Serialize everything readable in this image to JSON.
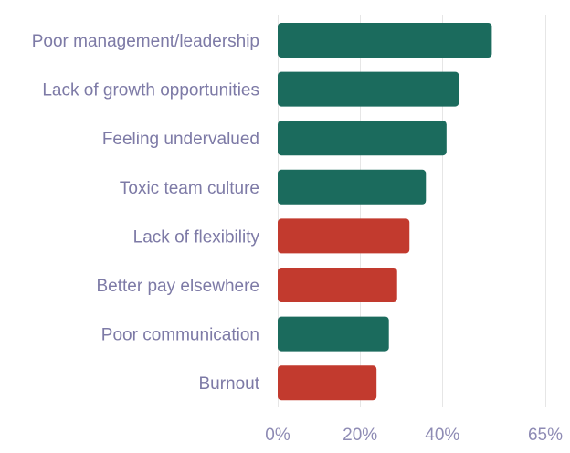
{
  "chart_data": {
    "type": "bar",
    "orientation": "horizontal",
    "title": "",
    "xlabel": "",
    "ylabel": "",
    "categories": [
      "Poor management/leadership",
      "Lack of growth opportunities",
      "Feeling undervalued",
      "Toxic team culture",
      "Lack of flexibility",
      "Better pay elsewhere",
      "Poor communication",
      "Burnout"
    ],
    "values": [
      52,
      44,
      41,
      36,
      32,
      29,
      27,
      24
    ],
    "bar_colors": [
      "#1b6b5d",
      "#1b6b5d",
      "#1b6b5d",
      "#1b6b5d",
      "#c23a2e",
      "#c23a2e",
      "#1b6b5d",
      "#c23a2e"
    ],
    "xlim": [
      0,
      65
    ],
    "x_ticks": [
      0,
      20,
      40,
      65
    ],
    "x_tick_labels": [
      "0%",
      "20%",
      "40%",
      "65%"
    ],
    "grid": true,
    "legend": "none"
  }
}
